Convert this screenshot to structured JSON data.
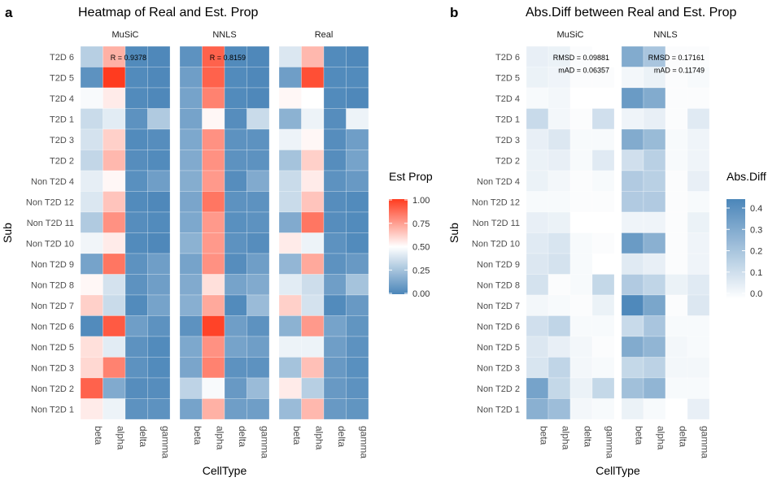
{
  "panel_a_letter": "a",
  "panel_b_letter": "b",
  "chart_data": [
    {
      "type": "heatmap",
      "title": "Heatmap of Real and Est. Prop",
      "xlabel": "CellType",
      "ylabel": "Sub",
      "facets": [
        "MuSiC",
        "NNLS",
        "Real"
      ],
      "x": [
        "beta",
        "alpha",
        "delta",
        "gamma"
      ],
      "y": [
        "T2D 6",
        "T2D 5",
        "T2D 4",
        "T2D 1",
        "T2D 3",
        "T2D 2",
        "Non T2D 4",
        "Non T2D 12",
        "Non T2D 11",
        "Non T2D 10",
        "Non T2D 9",
        "Non T2D 8",
        "Non T2D 7",
        "Non T2D 6",
        "Non T2D 5",
        "Non T2D 3",
        "Non T2D 2",
        "Non T2D 1"
      ],
      "values": {
        "MuSiC": [
          [
            0.3,
            0.7,
            0.02,
            0.01
          ],
          [
            0.05,
            1.0,
            0.02,
            0.01
          ],
          [
            0.48,
            0.55,
            0.02,
            0.01
          ],
          [
            0.35,
            0.42,
            0.05,
            0.28
          ],
          [
            0.38,
            0.62,
            0.02,
            0.03
          ],
          [
            0.33,
            0.68,
            0.03,
            0.02
          ],
          [
            0.43,
            0.52,
            0.04,
            0.1
          ],
          [
            0.4,
            0.65,
            0.02,
            0.01
          ],
          [
            0.28,
            0.78,
            0.03,
            0.02
          ],
          [
            0.46,
            0.55,
            0.02,
            0.01
          ],
          [
            0.12,
            0.85,
            0.05,
            0.1
          ],
          [
            0.52,
            0.38,
            0.05,
            0.1
          ],
          [
            0.62,
            0.35,
            0.02,
            0.12
          ],
          [
            0.02,
            0.92,
            0.1,
            0.05
          ],
          [
            0.58,
            0.42,
            0.05,
            0.02
          ],
          [
            0.6,
            0.82,
            0.05,
            0.02
          ],
          [
            0.9,
            0.15,
            0.03,
            0.03
          ],
          [
            0.55,
            0.45,
            0.05,
            0.05
          ]
        ],
        "NNLS": [
          [
            0.05,
            0.9,
            0.02,
            0.01
          ],
          [
            0.1,
            0.9,
            0.02,
            0.01
          ],
          [
            0.12,
            0.82,
            0.02,
            0.01
          ],
          [
            0.12,
            0.52,
            0.03,
            0.35
          ],
          [
            0.14,
            0.78,
            0.05,
            0.05
          ],
          [
            0.15,
            0.78,
            0.05,
            0.05
          ],
          [
            0.16,
            0.76,
            0.03,
            0.15
          ],
          [
            0.13,
            0.85,
            0.05,
            0.05
          ],
          [
            0.14,
            0.76,
            0.04,
            0.05
          ],
          [
            0.18,
            0.76,
            0.05,
            0.03
          ],
          [
            0.12,
            0.78,
            0.03,
            0.1
          ],
          [
            0.15,
            0.58,
            0.12,
            0.15
          ],
          [
            0.17,
            0.72,
            0.02,
            0.22
          ],
          [
            0.05,
            0.98,
            0.1,
            0.05
          ],
          [
            0.14,
            0.78,
            0.12,
            0.1
          ],
          [
            0.13,
            0.82,
            0.05,
            0.05
          ],
          [
            0.32,
            0.48,
            0.08,
            0.22
          ],
          [
            0.12,
            0.7,
            0.1,
            0.1
          ]
        ],
        "Real": [
          [
            0.4,
            0.68,
            0.02,
            0.01
          ],
          [
            0.1,
            0.95,
            0.02,
            0.02
          ],
          [
            0.52,
            0.5,
            0.02,
            0.01
          ],
          [
            0.18,
            0.45,
            0.03,
            0.45
          ],
          [
            0.45,
            0.52,
            0.03,
            0.1
          ],
          [
            0.25,
            0.62,
            0.03,
            0.12
          ],
          [
            0.35,
            0.55,
            0.05,
            0.08
          ],
          [
            0.35,
            0.65,
            0.03,
            0.02
          ],
          [
            0.15,
            0.85,
            0.03,
            0.02
          ],
          [
            0.55,
            0.45,
            0.05,
            0.02
          ],
          [
            0.2,
            0.72,
            0.05,
            0.08
          ],
          [
            0.42,
            0.36,
            0.1,
            0.25
          ],
          [
            0.62,
            0.38,
            0.02,
            0.08
          ],
          [
            0.18,
            0.76,
            0.12,
            0.06
          ],
          [
            0.45,
            0.45,
            0.1,
            0.05
          ],
          [
            0.25,
            0.66,
            0.08,
            0.04
          ],
          [
            0.55,
            0.3,
            0.08,
            0.05
          ],
          [
            0.22,
            0.68,
            0.08,
            0.06
          ]
        ]
      },
      "stats": {
        "MuSiC": [
          "R = 0.9378"
        ],
        "NNLS": [
          "R = 0.8159"
        ]
      },
      "legend": {
        "title": "Est Prop",
        "position": "right",
        "ticks": [
          "1.00",
          "0.75",
          "0.50",
          "0.25",
          "0.00"
        ],
        "range": [
          0,
          1
        ],
        "colors": {
          "low": "#4b86b9",
          "mid": "#ffffff",
          "high": "#ff3b1f"
        }
      },
      "grid": false
    },
    {
      "type": "heatmap",
      "title": "Abs.Diff between Real and Est. Prop",
      "xlabel": "CellType",
      "ylabel": "Sub",
      "facets": [
        "MuSiC",
        "NNLS"
      ],
      "x": [
        "beta",
        "alpha",
        "delta",
        "gamma"
      ],
      "y": [
        "T2D 6",
        "T2D 5",
        "T2D 4",
        "T2D 1",
        "T2D 3",
        "T2D 2",
        "Non T2D 4",
        "Non T2D 12",
        "Non T2D 11",
        "Non T2D 10",
        "Non T2D 9",
        "Non T2D 8",
        "Non T2D 7",
        "Non T2D 6",
        "Non T2D 5",
        "Non T2D 3",
        "Non T2D 2",
        "Non T2D 1"
      ],
      "values": {
        "MuSiC": [
          [
            0.06,
            0.05,
            0.01,
            0.0
          ],
          [
            0.05,
            0.04,
            0.01,
            0.01
          ],
          [
            0.02,
            0.03,
            0.0,
            0.0
          ],
          [
            0.14,
            0.03,
            0.01,
            0.12
          ],
          [
            0.06,
            0.09,
            0.02,
            0.02
          ],
          [
            0.05,
            0.06,
            0.02,
            0.08
          ],
          [
            0.05,
            0.03,
            0.01,
            0.02
          ],
          [
            0.02,
            0.02,
            0.01,
            0.01
          ],
          [
            0.06,
            0.05,
            0.0,
            0.0
          ],
          [
            0.08,
            0.1,
            0.02,
            0.01
          ],
          [
            0.09,
            0.11,
            0.02,
            0.0
          ],
          [
            0.11,
            0.01,
            0.02,
            0.15
          ],
          [
            0.03,
            0.02,
            0.01,
            0.05
          ],
          [
            0.12,
            0.16,
            0.02,
            0.02
          ],
          [
            0.09,
            0.06,
            0.03,
            0.01
          ],
          [
            0.1,
            0.16,
            0.03,
            0.02
          ],
          [
            0.35,
            0.15,
            0.05,
            0.15
          ],
          [
            0.3,
            0.25,
            0.03,
            0.02
          ]
        ],
        "NNLS": [
          [
            0.32,
            0.22,
            0.01,
            0.01
          ],
          [
            0.03,
            0.05,
            0.01,
            0.02
          ],
          [
            0.38,
            0.32,
            0.01,
            0.01
          ],
          [
            0.04,
            0.06,
            0.01,
            0.08
          ],
          [
            0.32,
            0.26,
            0.02,
            0.04
          ],
          [
            0.12,
            0.18,
            0.02,
            0.04
          ],
          [
            0.2,
            0.18,
            0.01,
            0.06
          ],
          [
            0.2,
            0.2,
            0.01,
            0.02
          ],
          [
            0.04,
            0.04,
            0.01,
            0.05
          ],
          [
            0.38,
            0.3,
            0.01,
            0.04
          ],
          [
            0.08,
            0.06,
            0.01,
            0.04
          ],
          [
            0.2,
            0.16,
            0.05,
            0.08
          ],
          [
            0.45,
            0.34,
            0.01,
            0.09
          ],
          [
            0.14,
            0.22,
            0.02,
            0.02
          ],
          [
            0.32,
            0.28,
            0.03,
            0.02
          ],
          [
            0.15,
            0.17,
            0.03,
            0.03
          ],
          [
            0.24,
            0.28,
            0.02,
            0.02
          ],
          [
            0.05,
            0.02,
            0.0,
            0.06
          ]
        ]
      },
      "stats": {
        "MuSiC": [
          "RMSD = 0.09881",
          "mAD = 0.06357"
        ],
        "NNLS": [
          "RMSD = 0.17161",
          "mAD = 0.11749"
        ]
      },
      "legend": {
        "title": "Abs.Diff",
        "position": "right",
        "ticks": [
          "0.4",
          "0.3",
          "0.2",
          "0.1",
          "0.0"
        ],
        "range": [
          0,
          0.46
        ],
        "colors": {
          "low": "#ffffff",
          "high": "#4b86b9"
        }
      },
      "grid": false
    }
  ]
}
